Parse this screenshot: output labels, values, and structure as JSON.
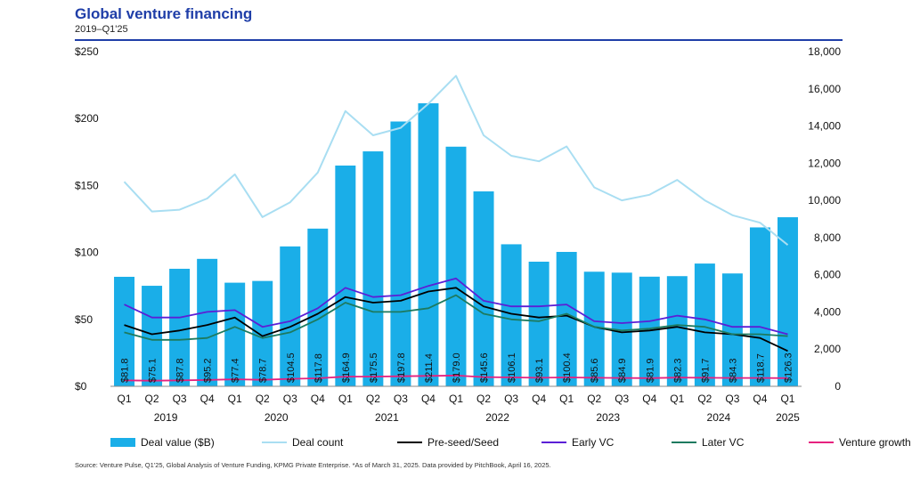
{
  "header": {
    "title": "Global venture financing",
    "subtitle": "2019–Q1'25"
  },
  "footnote": "Source: Venture Pulse, Q1'25, Global Analysis of Venture Funding, KPMG Private Enterprise. *As of March 31, 2025. Data provided by PitchBook, April 16, 2025.",
  "colors": {
    "deal_value": "#1aaee8",
    "deal_count": "#a9def2",
    "pre_seed": "#000000",
    "early_vc": "#5b1fd6",
    "later_vc": "#1d7a5f",
    "venture_growth": "#e6217f",
    "title": "#1f3ea8"
  },
  "chart_data": {
    "type": "bar",
    "categories": [
      "Q1",
      "Q2",
      "Q3",
      "Q4",
      "Q1",
      "Q2",
      "Q3",
      "Q4",
      "Q1",
      "Q2",
      "Q3",
      "Q4",
      "Q1",
      "Q2",
      "Q3",
      "Q4",
      "Q1",
      "Q2",
      "Q3",
      "Q4",
      "Q1",
      "Q2",
      "Q3",
      "Q4",
      "Q1"
    ],
    "years": [
      {
        "label": "2019",
        "start": 0,
        "end": 3
      },
      {
        "label": "2020",
        "start": 4,
        "end": 7
      },
      {
        "label": "2021",
        "start": 8,
        "end": 11
      },
      {
        "label": "2022",
        "start": 12,
        "end": 15
      },
      {
        "label": "2023",
        "start": 16,
        "end": 19
      },
      {
        "label": "2024",
        "start": 20,
        "end": 23
      },
      {
        "label": "2025",
        "start": 24,
        "end": 24
      }
    ],
    "y_left": {
      "ylim": [
        0,
        250
      ],
      "ticks": [
        "$0",
        "$50",
        "$100",
        "$150",
        "$200",
        "$250"
      ],
      "tick_values": [
        0,
        50,
        100,
        150,
        200,
        250
      ]
    },
    "y_right": {
      "ylim": [
        0,
        18000
      ],
      "ticks": [
        "0",
        "2,000",
        "4,000",
        "6,000",
        "8,000",
        "10,000",
        "12,000",
        "14,000",
        "16,000",
        "18,000"
      ],
      "tick_values": [
        0,
        2000,
        4000,
        6000,
        8000,
        10000,
        12000,
        14000,
        16000,
        18000
      ]
    },
    "bars": {
      "name": "Deal value ($B)",
      "values": [
        81.8,
        75.1,
        87.8,
        95.2,
        77.4,
        78.7,
        104.5,
        117.8,
        164.9,
        175.5,
        197.8,
        211.4,
        179.0,
        145.6,
        106.1,
        93.1,
        100.4,
        85.6,
        84.9,
        81.9,
        82.3,
        91.7,
        84.3,
        118.7,
        126.3
      ],
      "labels": [
        "$81.8",
        "$75.1",
        "$87.8",
        "$95.2",
        "$77.4",
        "$78.7",
        "$104.5",
        "$117.8",
        "$164.9",
        "$175.5",
        "$197.8",
        "$211.4",
        "$179.0",
        "$145.6",
        "$106.1",
        "$93.1",
        "$100.4",
        "$85.6",
        "$84.9",
        "$81.9",
        "$82.3",
        "$91.7",
        "$84.3",
        "$118.7",
        "$126.3"
      ]
    },
    "lines": [
      {
        "key": "deal_count",
        "name": "Deal count",
        "values": [
          11000,
          9400,
          9500,
          10100,
          11400,
          9100,
          9900,
          11500,
          14800,
          13500,
          13900,
          15200,
          16700,
          13500,
          12400,
          12100,
          12900,
          10700,
          10000,
          10300,
          11100,
          10000,
          9200,
          8800,
          7600
        ]
      },
      {
        "key": "pre_seed",
        "name": "Pre-seed/Seed",
        "values": [
          3300,
          2800,
          3000,
          3300,
          3700,
          2700,
          3200,
          3900,
          4800,
          4500,
          4600,
          5100,
          5300,
          4300,
          3900,
          3700,
          3800,
          3200,
          2900,
          3000,
          3200,
          2900,
          2800,
          2600,
          1900
        ]
      },
      {
        "key": "early_vc",
        "name": "Early VC",
        "values": [
          4400,
          3700,
          3700,
          4000,
          4100,
          3200,
          3500,
          4200,
          5300,
          4800,
          4900,
          5400,
          5800,
          4600,
          4300,
          4300,
          4400,
          3500,
          3400,
          3500,
          3800,
          3600,
          3200,
          3200,
          2800
        ]
      },
      {
        "key": "later_vc",
        "name": "Later VC",
        "values": [
          2900,
          2500,
          2500,
          2600,
          3200,
          2600,
          2900,
          3600,
          4500,
          4000,
          4000,
          4200,
          4900,
          3900,
          3600,
          3500,
          3900,
          3200,
          3000,
          3100,
          3300,
          3200,
          2800,
          2800,
          2700
        ]
      },
      {
        "key": "venture_growth",
        "name": "Venture growth",
        "values": [
          320,
          300,
          320,
          340,
          380,
          350,
          400,
          430,
          520,
          520,
          540,
          560,
          580,
          500,
          480,
          460,
          480,
          460,
          450,
          440,
          470,
          460,
          450,
          450,
          440
        ]
      }
    ],
    "legend": [
      {
        "key": "deal_value",
        "label": "Deal value ($B)",
        "kind": "box"
      },
      {
        "key": "deal_count",
        "label": "Deal count",
        "kind": "line"
      },
      {
        "key": "pre_seed",
        "label": "Pre-seed/Seed",
        "kind": "line"
      },
      {
        "key": "early_vc",
        "label": "Early VC",
        "kind": "line"
      },
      {
        "key": "later_vc",
        "label": "Later VC",
        "kind": "line"
      },
      {
        "key": "venture_growth",
        "label": "Venture growth",
        "kind": "line"
      }
    ],
    "legend_placement": "bottom"
  }
}
